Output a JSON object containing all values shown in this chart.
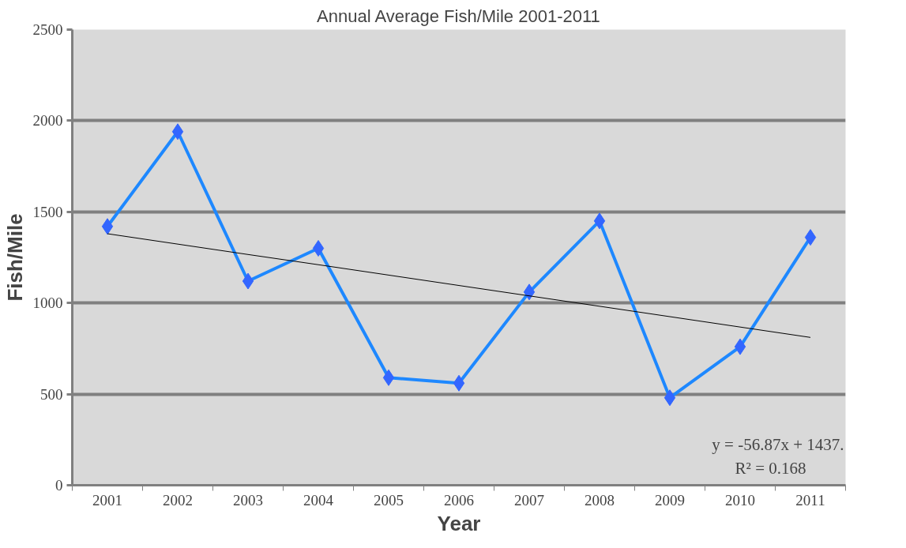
{
  "chart_data": {
    "type": "line",
    "title": "Annual Average Fish/Mile 2001-2011",
    "xlabel": "Year",
    "ylabel": "Fish/Mile",
    "categories": [
      "2001",
      "2002",
      "2003",
      "2004",
      "2005",
      "2006",
      "2007",
      "2008",
      "2009",
      "2010",
      "2011"
    ],
    "series": [
      {
        "color": "#1e88ff",
        "values": [
          1420,
          1940,
          1120,
          1300,
          590,
          560,
          1060,
          1450,
          480,
          760,
          1360
        ],
        "marker": "diamond"
      },
      {
        "type": "line",
        "color": "#000000",
        "values": [
          1380,
          1323,
          1266,
          1210,
          1153,
          1096,
          1039,
          982,
          925,
          868,
          811
        ],
        "marker": "none"
      }
    ],
    "ylim": [
      0,
      2500
    ],
    "yticks": [
      0,
      500,
      1000,
      1500,
      2000,
      2500
    ],
    "grid": "y",
    "annotations": [
      "y = -56.87x + 1437.",
      "R² = 0.168"
    ]
  }
}
